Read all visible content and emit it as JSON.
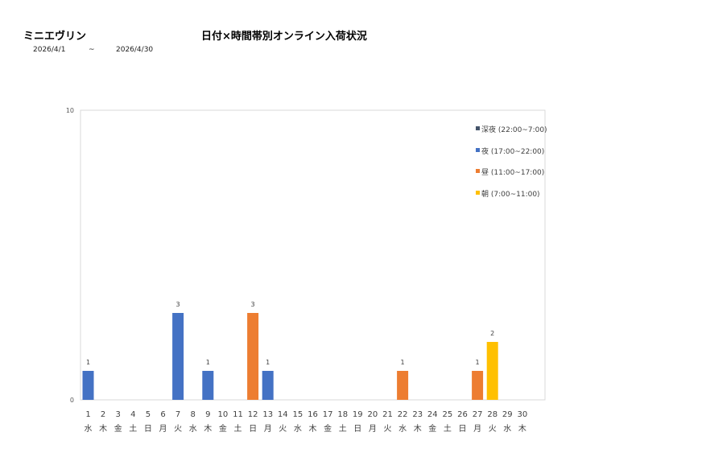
{
  "header": {
    "store_name": "ミニエヴリン",
    "title": "日付×時間帯別オンライン入荷状況",
    "date_from": "2026/4/1",
    "date_sep": "~",
    "date_to": "2026/4/30"
  },
  "chart_data": {
    "type": "bar",
    "stacked": true,
    "title": "日付×時間帯別オンライン入荷状況",
    "ylim": [
      0,
      10
    ],
    "yticks": [
      0,
      10
    ],
    "grid": false,
    "legend_position": "top-right",
    "categories": [
      "1",
      "2",
      "3",
      "4",
      "5",
      "6",
      "7",
      "8",
      "9",
      "10",
      "11",
      "12",
      "13",
      "14",
      "15",
      "16",
      "17",
      "18",
      "19",
      "20",
      "21",
      "22",
      "23",
      "24",
      "25",
      "26",
      "27",
      "28",
      "29",
      "30"
    ],
    "weekdays": [
      "水",
      "木",
      "金",
      "土",
      "日",
      "月",
      "火",
      "水",
      "木",
      "金",
      "土",
      "日",
      "月",
      "火",
      "水",
      "木",
      "金",
      "土",
      "日",
      "月",
      "火",
      "水",
      "木",
      "金",
      "土",
      "日",
      "月",
      "火",
      "水",
      "木"
    ],
    "series": [
      {
        "name": "深夜 (22:00~7:00)",
        "color": "#44546a",
        "values": [
          0,
          0,
          0,
          0,
          0,
          0,
          0,
          0,
          0,
          0,
          0,
          0,
          0,
          0,
          0,
          0,
          0,
          0,
          0,
          0,
          0,
          0,
          0,
          0,
          0,
          0,
          0,
          0,
          0,
          0
        ]
      },
      {
        "name": "夜 (17:00~22:00)",
        "color": "#4472c4",
        "values": [
          1,
          0,
          0,
          0,
          0,
          0,
          3,
          0,
          1,
          0,
          0,
          0,
          1,
          0,
          0,
          0,
          0,
          0,
          0,
          0,
          0,
          0,
          0,
          0,
          0,
          0,
          0,
          0,
          0,
          0
        ]
      },
      {
        "name": "昼 (11:00~17:00)",
        "color": "#ed7d31",
        "values": [
          0,
          0,
          0,
          0,
          0,
          0,
          0,
          0,
          0,
          0,
          0,
          3,
          0,
          0,
          0,
          0,
          0,
          0,
          0,
          0,
          0,
          1,
          0,
          0,
          0,
          0,
          1,
          0,
          0,
          0
        ]
      },
      {
        "name": "朝 (7:00~11:00)",
        "color": "#ffc000",
        "values": [
          0,
          0,
          0,
          0,
          0,
          0,
          0,
          0,
          0,
          0,
          0,
          0,
          0,
          0,
          0,
          0,
          0,
          0,
          0,
          0,
          0,
          0,
          0,
          0,
          0,
          0,
          0,
          2,
          0,
          0
        ]
      }
    ],
    "legend_order": [
      "深夜 (22:00~7:00)",
      "夜 (17:00~22:00)",
      "昼 (11:00~17:00)",
      "朝 (7:00~11:00)"
    ]
  }
}
